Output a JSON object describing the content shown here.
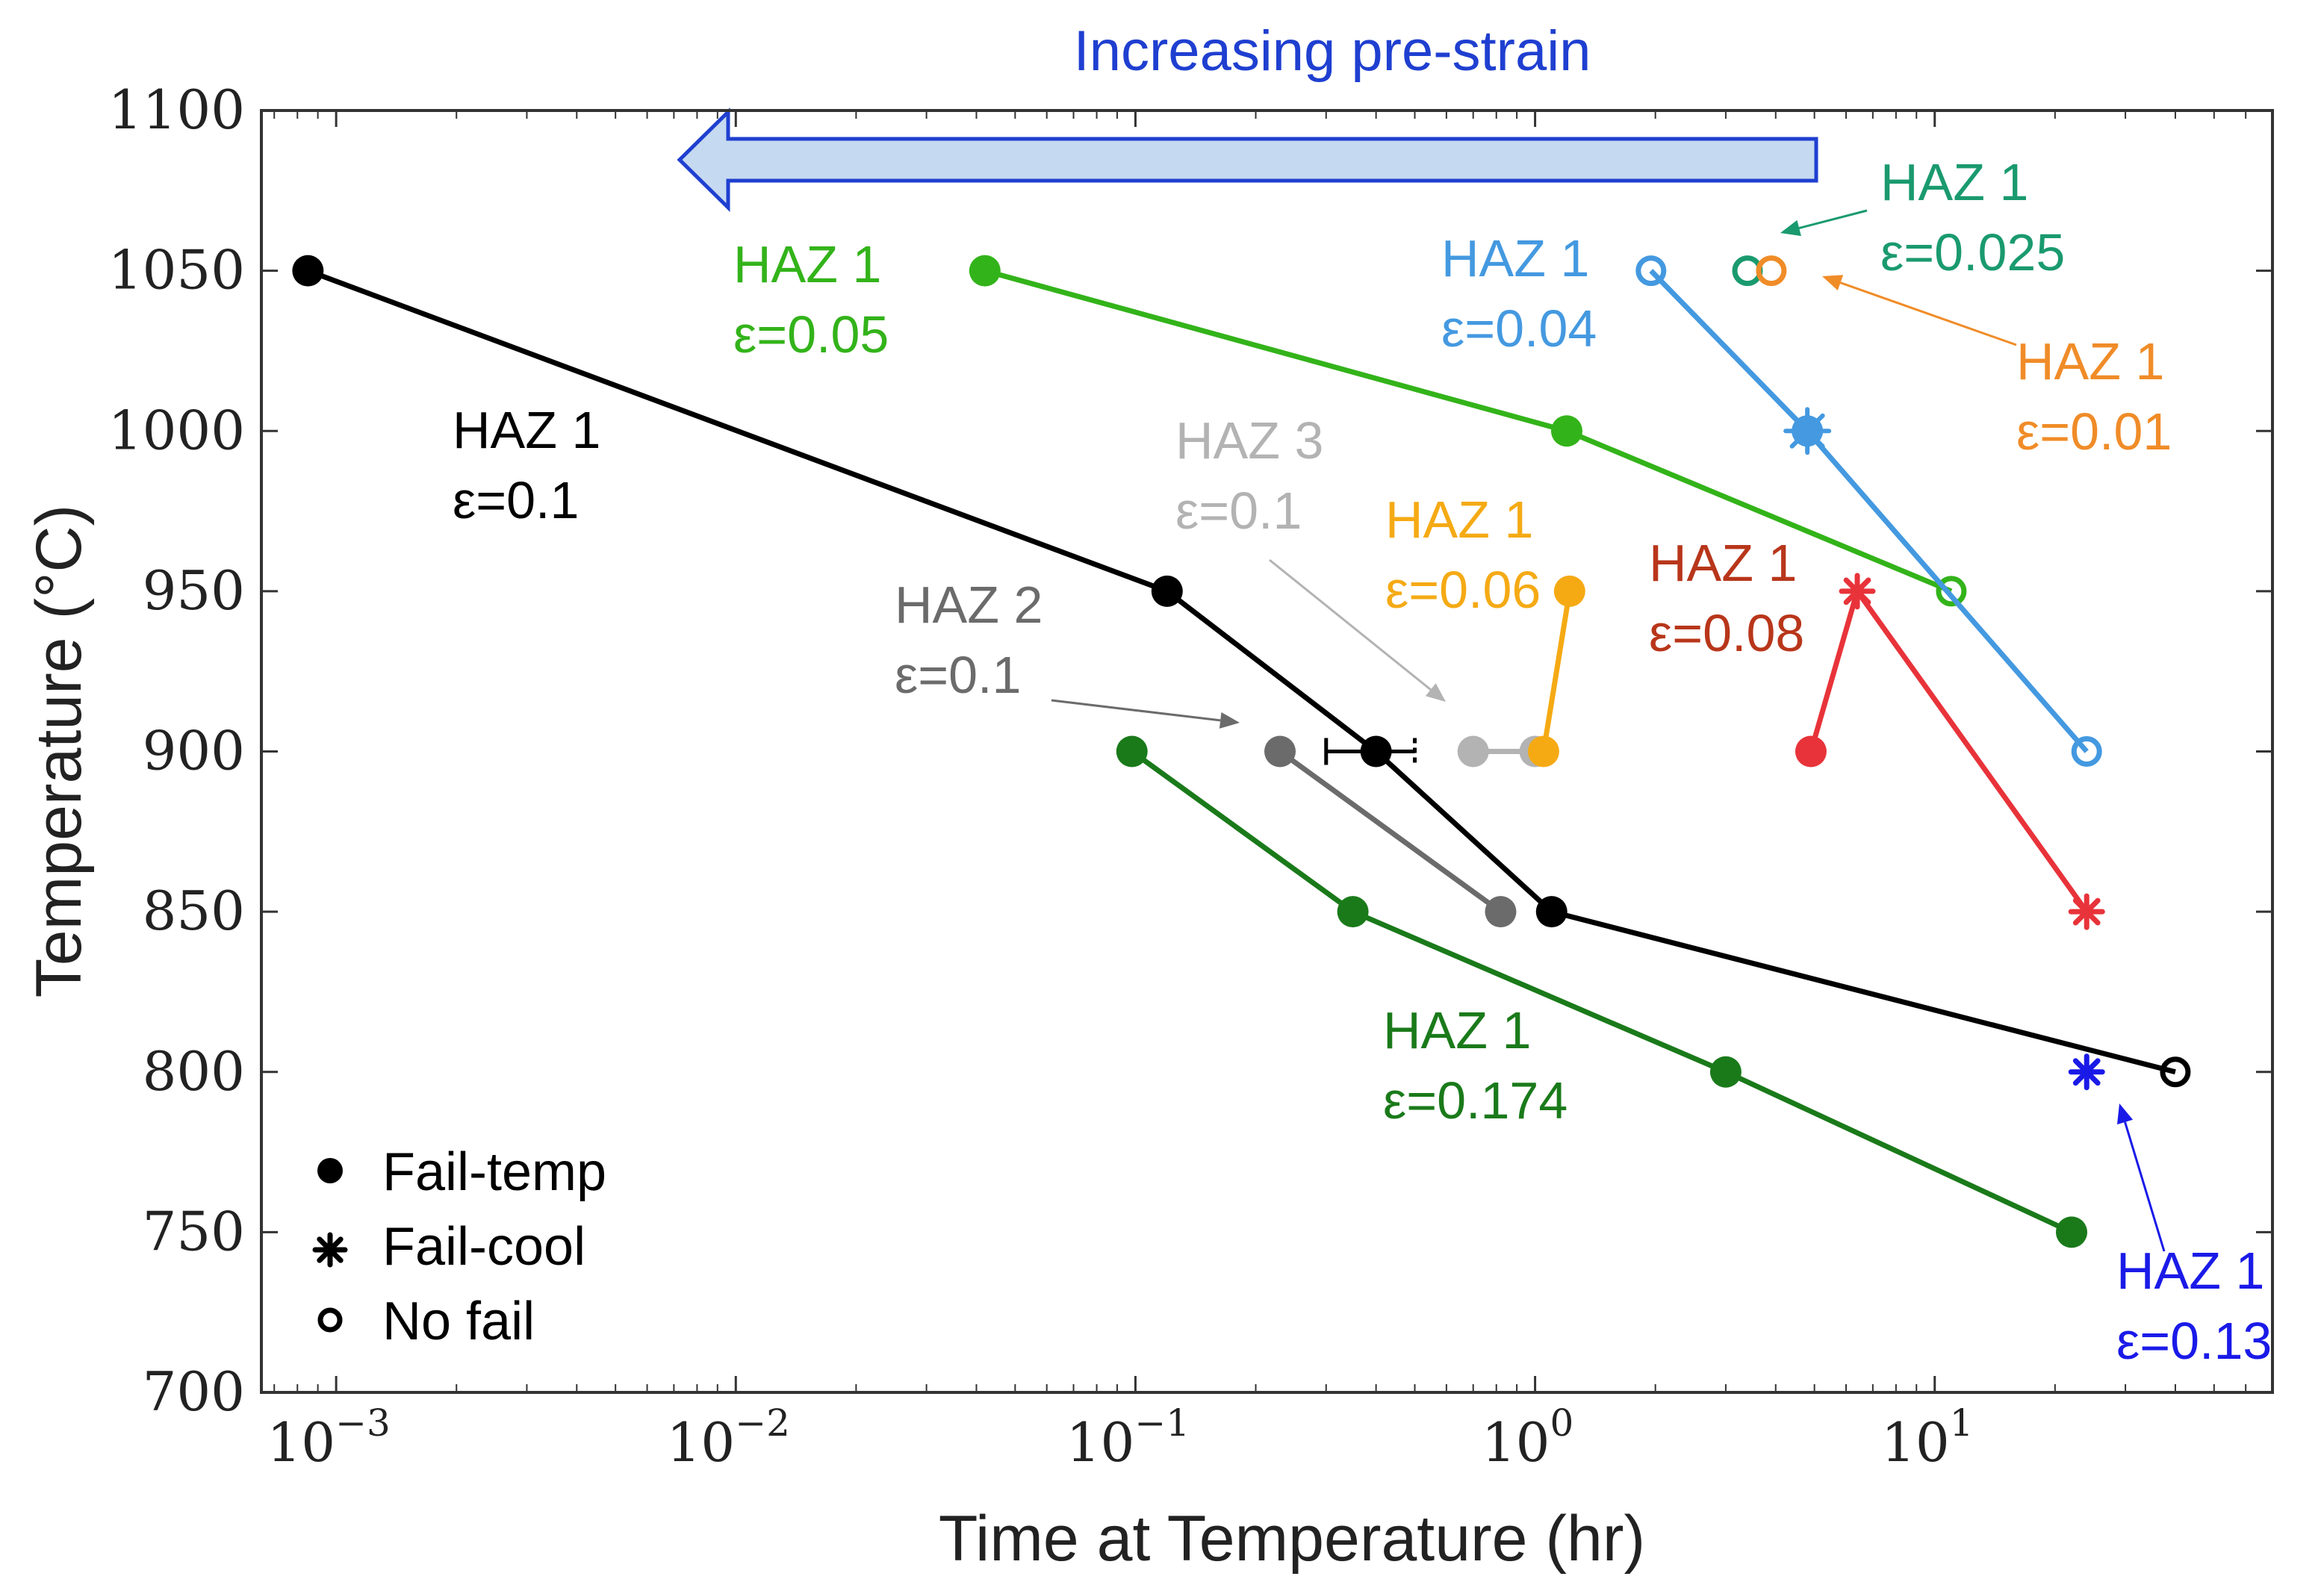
{
  "arrow_label": "Increasing pre-strain",
  "colors": {
    "arrow_fill": "#c5d9f1",
    "arrow_stroke": "#1f3fd0",
    "arrow_text": "#1f3fd0",
    "axis": "#333333"
  },
  "chart_data": {
    "type": "line",
    "xscale": "log",
    "xlim": [
      0.00065,
      70
    ],
    "ylim": [
      700,
      1100
    ],
    "xlabel": "Time at Temperature (hr)",
    "ylabel": "Temperature (°C)",
    "x_ticks": [
      {
        "value": 0.001,
        "base": "10",
        "exp": "−3"
      },
      {
        "value": 0.01,
        "base": "10",
        "exp": "−2"
      },
      {
        "value": 0.1,
        "base": "10",
        "exp": "−1"
      },
      {
        "value": 1,
        "base": "10",
        "exp": "0"
      },
      {
        "value": 10,
        "base": "10",
        "exp": "1"
      }
    ],
    "y_ticks": [
      700,
      750,
      800,
      850,
      900,
      950,
      1000,
      1050,
      1100
    ],
    "series": [
      {
        "id": "haz1-0.1",
        "name": "HAZ 1 ε=0.1",
        "label_line1": "HAZ 1",
        "label_line2": "ε=0.1",
        "color": "#000000",
        "points": [
          {
            "x": 0.00085,
            "y": 1050,
            "marker": "filled"
          },
          {
            "x": 0.12,
            "y": 950,
            "marker": "filled"
          },
          {
            "x": 0.4,
            "y": 900,
            "marker": "filled"
          },
          {
            "x": 1.1,
            "y": 850,
            "marker": "filled"
          },
          {
            "x": 40,
            "y": 800,
            "marker": "open"
          }
        ],
        "error_bar": {
          "point": 2,
          "xlow": 0.3,
          "xhigh": 0.5
        }
      },
      {
        "id": "haz1-0.05",
        "name": "HAZ 1 ε=0.05",
        "label_line1": "HAZ 1",
        "label_line2": "ε=0.05",
        "color": "#33b31a",
        "points": [
          {
            "x": 0.042,
            "y": 1050,
            "marker": "filled"
          },
          {
            "x": 1.2,
            "y": 1000,
            "marker": "filled"
          },
          {
            "x": 11,
            "y": 950,
            "marker": "open"
          }
        ]
      },
      {
        "id": "haz1-0.04",
        "name": "HAZ 1 ε=0.04",
        "label_line1": "HAZ 1",
        "label_line2": "ε=0.04",
        "color": "#4499e0",
        "points": [
          {
            "x": 1.95,
            "y": 1050,
            "marker": "open"
          },
          {
            "x": 4.8,
            "y": 1000,
            "marker": "filled-star"
          },
          {
            "x": 24,
            "y": 900,
            "marker": "open"
          }
        ]
      },
      {
        "id": "haz1-0.025",
        "name": "HAZ 1 ε=0.025",
        "label_line1": "HAZ 1",
        "label_line2": "ε=0.025",
        "color": "#1a9a6e",
        "points": [
          {
            "x": 3.4,
            "y": 1050,
            "marker": "open"
          }
        ]
      },
      {
        "id": "haz1-0.01",
        "name": "HAZ 1 ε=0.01",
        "label_line1": "HAZ 1",
        "label_line2": "ε=0.01",
        "color": "#f08c28",
        "points": [
          {
            "x": 3.9,
            "y": 1050,
            "marker": "open"
          }
        ]
      },
      {
        "id": "haz1-0.06",
        "name": "HAZ 1 ε=0.06",
        "label_line1": "HAZ 1",
        "label_line2": "ε=0.06",
        "color": "#f5aa14",
        "points": [
          {
            "x": 1.05,
            "y": 900,
            "marker": "filled"
          },
          {
            "x": 1.22,
            "y": 950,
            "marker": "filled"
          }
        ]
      },
      {
        "id": "haz1-0.08",
        "name": "HAZ 1 ε=0.08",
        "label_line1": "HAZ 1",
        "label_line2": "ε=0.08",
        "color": "#e8333a",
        "label_color": "#b8361a",
        "points": [
          {
            "x": 4.9,
            "y": 900,
            "marker": "filled"
          },
          {
            "x": 6.4,
            "y": 950,
            "marker": "star"
          },
          {
            "x": 24,
            "y": 850,
            "marker": "star"
          }
        ]
      },
      {
        "id": "haz2-0.1",
        "name": "HAZ 2 ε=0.1",
        "label_line1": "HAZ 2",
        "label_line2": "ε=0.1",
        "color": "#6b6b6b",
        "points": [
          {
            "x": 0.23,
            "y": 900,
            "marker": "filled"
          },
          {
            "x": 0.82,
            "y": 850,
            "marker": "filled"
          }
        ]
      },
      {
        "id": "haz3-0.1",
        "name": "HAZ 3 ε=0.1",
        "label_line1": "HAZ 3",
        "label_line2": "ε=0.1",
        "color": "#b3b3b3",
        "points": [
          {
            "x": 0.7,
            "y": 900,
            "marker": "filled"
          },
          {
            "x": 1.0,
            "y": 900,
            "marker": "filled"
          }
        ]
      },
      {
        "id": "haz1-0.174",
        "name": "HAZ 1 ε=0.174",
        "label_line1": "HAZ 1",
        "label_line2": "ε=0.174",
        "color": "#1a7a1a",
        "points": [
          {
            "x": 0.098,
            "y": 900,
            "marker": "filled"
          },
          {
            "x": 0.35,
            "y": 850,
            "marker": "filled"
          },
          {
            "x": 3.0,
            "y": 800,
            "marker": "filled"
          },
          {
            "x": 22,
            "y": 750,
            "marker": "filled"
          }
        ]
      },
      {
        "id": "haz1-0.13",
        "name": "HAZ 1 ε=0.13",
        "label_line1": "HAZ 1",
        "label_line2": "ε=0.13",
        "color": "#1a1ae8",
        "points": [
          {
            "x": 24,
            "y": 800,
            "marker": "star"
          }
        ]
      }
    ],
    "legend": {
      "placement": "bottom-left",
      "entries": [
        {
          "marker": "filled",
          "label": "Fail-temp"
        },
        {
          "marker": "star",
          "label": "Fail-cool"
        },
        {
          "marker": "open",
          "label": "No fail"
        }
      ]
    }
  }
}
